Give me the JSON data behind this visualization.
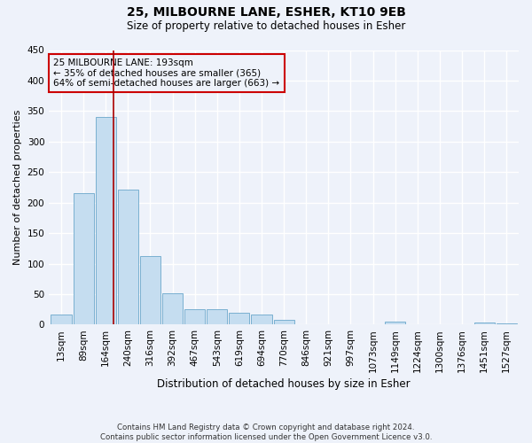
{
  "title1": "25, MILBOURNE LANE, ESHER, KT10 9EB",
  "title2": "Size of property relative to detached houses in Esher",
  "xlabel": "Distribution of detached houses by size in Esher",
  "ylabel": "Number of detached properties",
  "bin_labels": [
    "13sqm",
    "89sqm",
    "164sqm",
    "240sqm",
    "316sqm",
    "392sqm",
    "467sqm",
    "543sqm",
    "619sqm",
    "694sqm",
    "770sqm",
    "846sqm",
    "921sqm",
    "997sqm",
    "1073sqm",
    "1149sqm",
    "1224sqm",
    "1300sqm",
    "1376sqm",
    "1451sqm",
    "1527sqm"
  ],
  "bar_values": [
    17,
    215,
    340,
    222,
    113,
    52,
    26,
    25,
    20,
    17,
    8,
    0,
    0,
    0,
    0,
    5,
    0,
    0,
    0,
    3,
    2
  ],
  "bar_color": "#c5ddf0",
  "bar_edge_color": "#7ab0d0",
  "ylim": [
    0,
    450
  ],
  "yticks": [
    0,
    50,
    100,
    150,
    200,
    250,
    300,
    350,
    400,
    450
  ],
  "vline_x": 2.35,
  "vline_color": "#aa0000",
  "annotation_title": "25 MILBOURNE LANE: 193sqm",
  "annotation_line1": "← 35% of detached houses are smaller (365)",
  "annotation_line2": "64% of semi-detached houses are larger (663) →",
  "annotation_box_color": "#cc0000",
  "footnote1": "Contains HM Land Registry data © Crown copyright and database right 2024.",
  "footnote2": "Contains public sector information licensed under the Open Government Licence v3.0.",
  "bg_color": "#eef2fa",
  "grid_color": "#ffffff"
}
